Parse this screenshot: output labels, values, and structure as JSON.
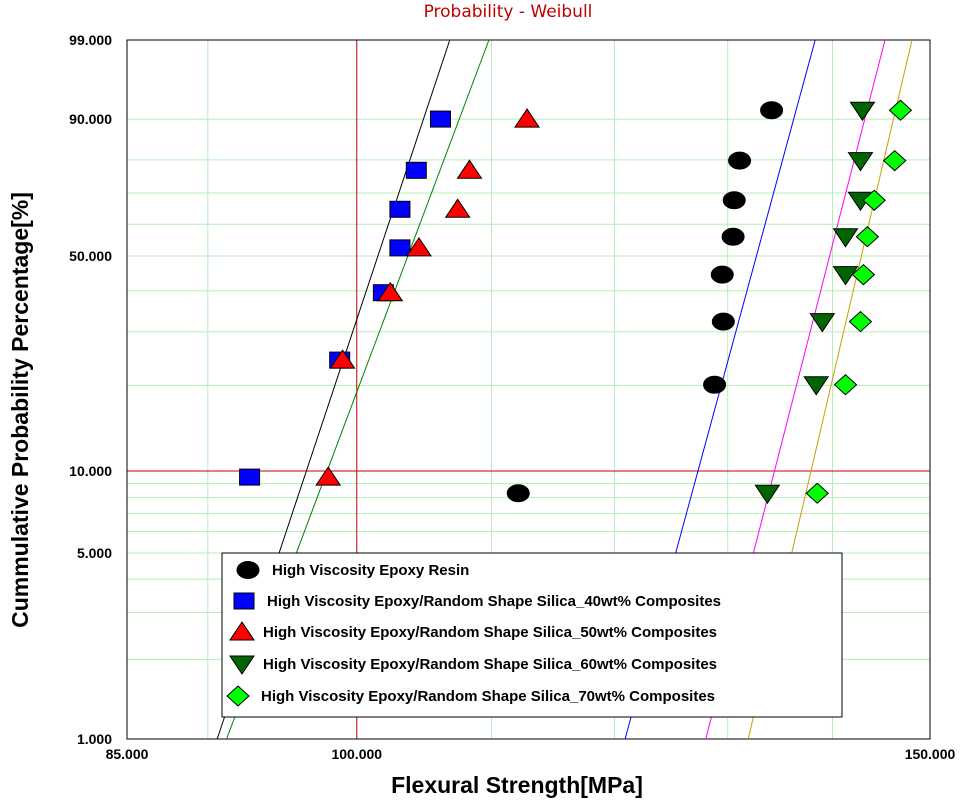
{
  "chart_data": {
    "type": "scatter",
    "title": "Probability - Weibull",
    "xlabel": "Flexural Strength[MPa]",
    "ylabel": "Cummulative Probability Percentage[%]",
    "x_scale": "log",
    "y_scale": "weibull",
    "xlim": [
      85,
      150
    ],
    "ylim": [
      1,
      99
    ],
    "x_ticks": [
      {
        "value": 85,
        "label": "85.000"
      },
      {
        "value": 100,
        "label": "100.000"
      },
      {
        "value": 150,
        "label": "150.000"
      }
    ],
    "y_ticks": [
      {
        "value": 99,
        "label": "99.000"
      },
      {
        "value": 90,
        "label": "90.000"
      },
      {
        "value": 50,
        "label": "50.000"
      },
      {
        "value": 10,
        "label": "10.000"
      },
      {
        "value": 5,
        "label": "5.000"
      },
      {
        "value": 1,
        "label": "1.000"
      }
    ],
    "reference_lines": {
      "x": 100,
      "y": 10,
      "color": "#c00000"
    },
    "legend_placement": "bottom-center",
    "grid": true,
    "series": [
      {
        "name": "High Viscosity Epoxy Resin",
        "marker": "circle",
        "color": "#000000",
        "line_color": "#0000ff",
        "fit_points": [
          [
            120.9,
            1
          ],
          [
            138.3,
            99
          ]
        ],
        "points": [
          [
            112.1,
            8.3
          ],
          [
            128.8,
            20.1
          ],
          [
            129.6,
            32.3
          ],
          [
            129.5,
            44.5
          ],
          [
            130.5,
            56.0
          ],
          [
            130.6,
            67.7
          ],
          [
            131.1,
            79.8
          ],
          [
            134.1,
            91.7
          ]
        ]
      },
      {
        "name": "High Viscosity Epoxy/Random Shape Silica_40wt% Composites",
        "marker": "square",
        "color": "#0000ff",
        "line_color": "#000000",
        "fit_points": [
          [
            90.6,
            1
          ],
          [
            106.8,
            99
          ]
        ],
        "points": [
          [
            92.7,
            9.5
          ],
          [
            98.8,
            24.3
          ],
          [
            101.9,
            39.5
          ],
          [
            103.1,
            52.5
          ],
          [
            103.1,
            64.8
          ],
          [
            104.3,
            77.0
          ],
          [
            106.1,
            90.0
          ]
        ]
      },
      {
        "name": "High Viscosity Epoxy/Random Shape Silica_50wt% Composites",
        "marker": "triangle-up",
        "color": "#ff0000",
        "line_color": "#008000",
        "fit_points": [
          [
            91.2,
            1
          ],
          [
            109.8,
            99
          ]
        ],
        "points": [
          [
            98.0,
            9.5
          ],
          [
            99.0,
            24.3
          ],
          [
            102.4,
            39.5
          ],
          [
            104.5,
            52.5
          ],
          [
            107.4,
            64.8
          ],
          [
            108.3,
            77.0
          ],
          [
            112.8,
            90.0
          ]
        ]
      },
      {
        "name": "High Viscosity Epoxy/Random Shape Silica_60wt% Composites",
        "marker": "triangle-down",
        "color": "#006400",
        "line_color": "#ff00ff",
        "fit_points": [
          [
            128.0,
            1
          ],
          [
            145.3,
            99
          ]
        ],
        "points": [
          [
            133.7,
            8.3
          ],
          [
            138.4,
            20.1
          ],
          [
            139.0,
            32.3
          ],
          [
            141.3,
            44.5
          ],
          [
            141.3,
            56.0
          ],
          [
            142.8,
            67.7
          ],
          [
            142.8,
            79.8
          ],
          [
            143.0,
            91.7
          ]
        ]
      },
      {
        "name": "High Viscosity Epoxy/Random Shape Silica_70wt% Composites",
        "marker": "diamond",
        "color": "#00ff00",
        "line_color": "#c8a000",
        "fit_points": [
          [
            131.9,
            1
          ],
          [
            148.1,
            99
          ]
        ],
        "points": [
          [
            138.5,
            8.3
          ],
          [
            141.3,
            20.1
          ],
          [
            142.8,
            32.3
          ],
          [
            143.1,
            44.5
          ],
          [
            143.5,
            56.0
          ],
          [
            144.2,
            67.7
          ],
          [
            146.3,
            79.8
          ],
          [
            146.9,
            91.7
          ]
        ]
      }
    ]
  }
}
